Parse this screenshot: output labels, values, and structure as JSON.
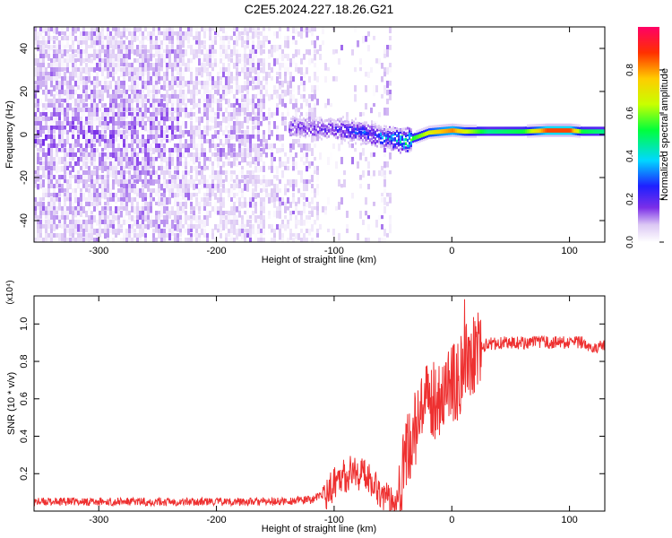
{
  "figure": {
    "title": "C2E5.2024.227.18.26.G21"
  },
  "chart_data": [
    {
      "type": "heatmap",
      "xlabel": "Height of straight line (km)",
      "ylabel": "Frequency (Hz)",
      "xlim": [
        -355,
        130
      ],
      "ylim": [
        -50,
        50
      ],
      "xticks": [
        -300,
        -200,
        -100,
        0,
        100
      ],
      "yticks": [
        -40,
        -20,
        0,
        20,
        40
      ],
      "colorbar": {
        "label": "Normalized spectral amplitude",
        "range": [
          0,
          1
        ],
        "ticks": [
          0.0,
          0.2,
          0.4,
          0.6,
          0.8
        ],
        "colormap": [
          "#ffffff",
          "#dcc8f4",
          "#7b2fe8",
          "#1e20ff",
          "#00d8ff",
          "#00ff3c",
          "#c8ff00",
          "#ffcc00",
          "#ff3000",
          "#ff0066"
        ]
      },
      "ridge": {
        "x": [
          -140,
          -120,
          -100,
          -80,
          -60,
          -50,
          -40,
          -30,
          -20,
          -10,
          0,
          10,
          30,
          60,
          80,
          100,
          110,
          130
        ],
        "freq": [
          4,
          3,
          2.5,
          1.5,
          -1,
          -2,
          -3,
          -1,
          1,
          1.5,
          2,
          1.5,
          1.5,
          1.5,
          2,
          2,
          1.5,
          1.5
        ],
        "amplitude": [
          0.2,
          0.2,
          0.25,
          0.3,
          0.35,
          0.4,
          0.55,
          0.65,
          0.75,
          0.85,
          0.9,
          0.75,
          0.55,
          0.6,
          0.95,
          0.95,
          0.6,
          0.55
        ]
      }
    },
    {
      "type": "line",
      "xlabel": "Height of straight line (km)",
      "ylabel": "SNR (10 * v/v)",
      "y_multiplier": "(x10⁴)",
      "xlim": [
        -355,
        130
      ],
      "ylim": [
        0,
        1.15
      ],
      "xticks": [
        -300,
        -200,
        -100,
        0,
        100
      ],
      "yticks": [
        0.2,
        0.4,
        0.6,
        0.8,
        1.0
      ],
      "color": "#ee3030",
      "series": [
        {
          "x": [
            -355,
            -300,
            -250,
            -200,
            -150,
            -120,
            -105,
            -100,
            -95,
            -90,
            -85,
            -80,
            -75,
            -70,
            -65,
            -60,
            -55,
            -50,
            -45,
            -40,
            -35,
            -30,
            -25,
            -20,
            -15,
            -10,
            -5,
            0,
            5,
            10,
            15,
            20,
            25,
            30,
            40,
            50,
            60,
            70,
            80,
            90,
            100,
            110,
            120,
            130
          ],
          "y": [
            0.05,
            0.05,
            0.05,
            0.05,
            0.05,
            0.06,
            0.1,
            0.15,
            0.2,
            0.18,
            0.22,
            0.2,
            0.2,
            0.18,
            0.14,
            0.1,
            0.06,
            0.05,
            0.12,
            0.25,
            0.38,
            0.45,
            0.52,
            0.58,
            0.6,
            0.62,
            0.65,
            0.68,
            0.7,
            0.75,
            0.82,
            0.86,
            0.88,
            0.89,
            0.9,
            0.9,
            0.9,
            0.9,
            0.9,
            0.9,
            0.9,
            0.9,
            0.88,
            0.88
          ]
        }
      ]
    }
  ]
}
